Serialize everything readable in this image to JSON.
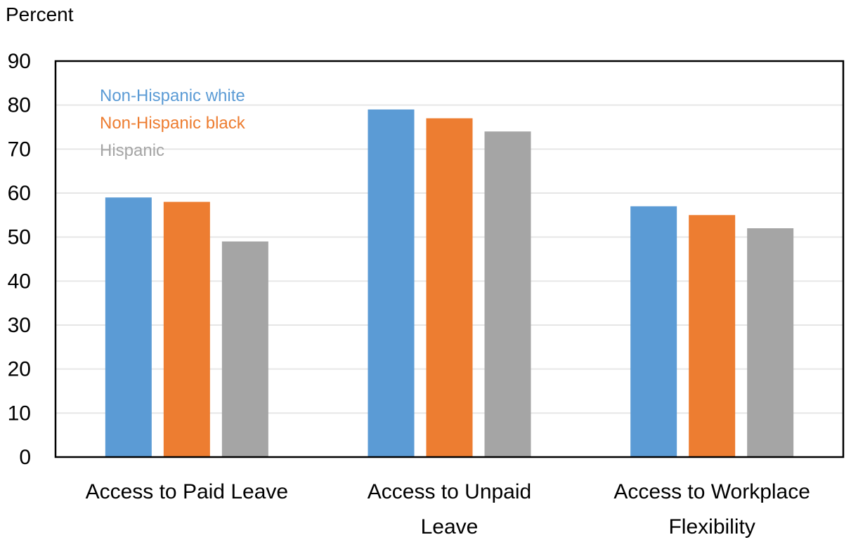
{
  "chart_data": {
    "type": "bar",
    "ylabel": "Percent",
    "ylim": [
      0,
      90
    ],
    "yticks": [
      0,
      10,
      20,
      30,
      40,
      50,
      60,
      70,
      80,
      90
    ],
    "grid": true,
    "legend_placement": "top-left",
    "categories": [
      [
        "Access to Paid Leave"
      ],
      [
        "Access to Unpaid",
        "Leave"
      ],
      [
        "Access to Workplace",
        "Flexibility"
      ]
    ],
    "series": [
      {
        "name": "Non-Hispanic white",
        "color": "#5B9BD5",
        "values": [
          59,
          79,
          57
        ]
      },
      {
        "name": "Non-Hispanic black",
        "color": "#ED7D31",
        "values": [
          58,
          77,
          55
        ]
      },
      {
        "name": "Hispanic",
        "color": "#A5A5A5",
        "values": [
          49,
          74,
          52
        ]
      }
    ]
  }
}
